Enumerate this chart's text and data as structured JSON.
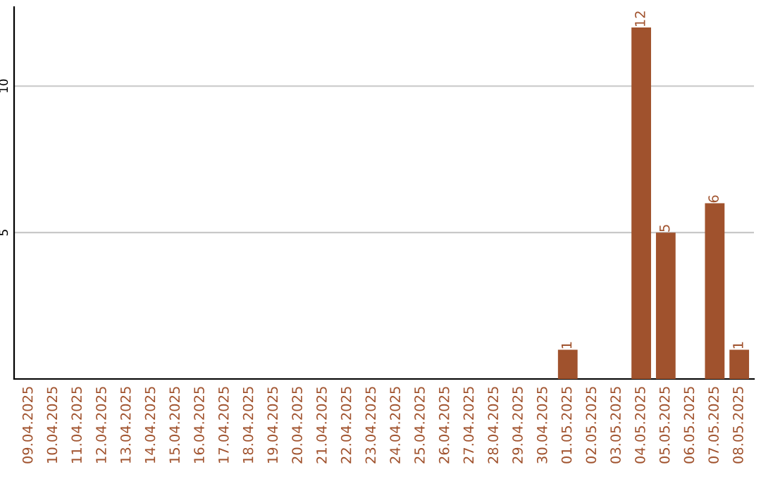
{
  "chart_data": {
    "type": "bar",
    "categories": [
      "09.04.2025",
      "10.04.2025",
      "11.04.2025",
      "12.04.2025",
      "13.04.2025",
      "14.04.2025",
      "15.04.2025",
      "16.04.2025",
      "17.04.2025",
      "18.04.2025",
      "19.04.2025",
      "20.04.2025",
      "21.04.2025",
      "22.04.2025",
      "23.04.2025",
      "24.04.2025",
      "25.04.2025",
      "26.04.2025",
      "27.04.2025",
      "28.04.2025",
      "29.04.2025",
      "30.04.2025",
      "01.05.2025",
      "02.05.2025",
      "03.05.2025",
      "04.05.2025",
      "05.05.2025",
      "06.05.2025",
      "07.05.2025",
      "08.05.2025"
    ],
    "values": [
      0,
      0,
      0,
      0,
      0,
      0,
      0,
      0,
      0,
      0,
      0,
      0,
      0,
      0,
      0,
      0,
      0,
      0,
      0,
      0,
      0,
      0,
      1,
      0,
      0,
      12,
      5,
      0,
      6,
      1
    ],
    "value_labels": [
      null,
      null,
      null,
      null,
      null,
      null,
      null,
      null,
      null,
      null,
      null,
      null,
      null,
      null,
      null,
      null,
      null,
      null,
      null,
      null,
      null,
      null,
      "1",
      null,
      null,
      "12",
      "5",
      null,
      "6",
      "1"
    ],
    "color": "#a0522d",
    "ylim": [
      0,
      12.7
    ],
    "yticks": [
      5,
      10
    ],
    "grid": "y",
    "legend": false
  }
}
